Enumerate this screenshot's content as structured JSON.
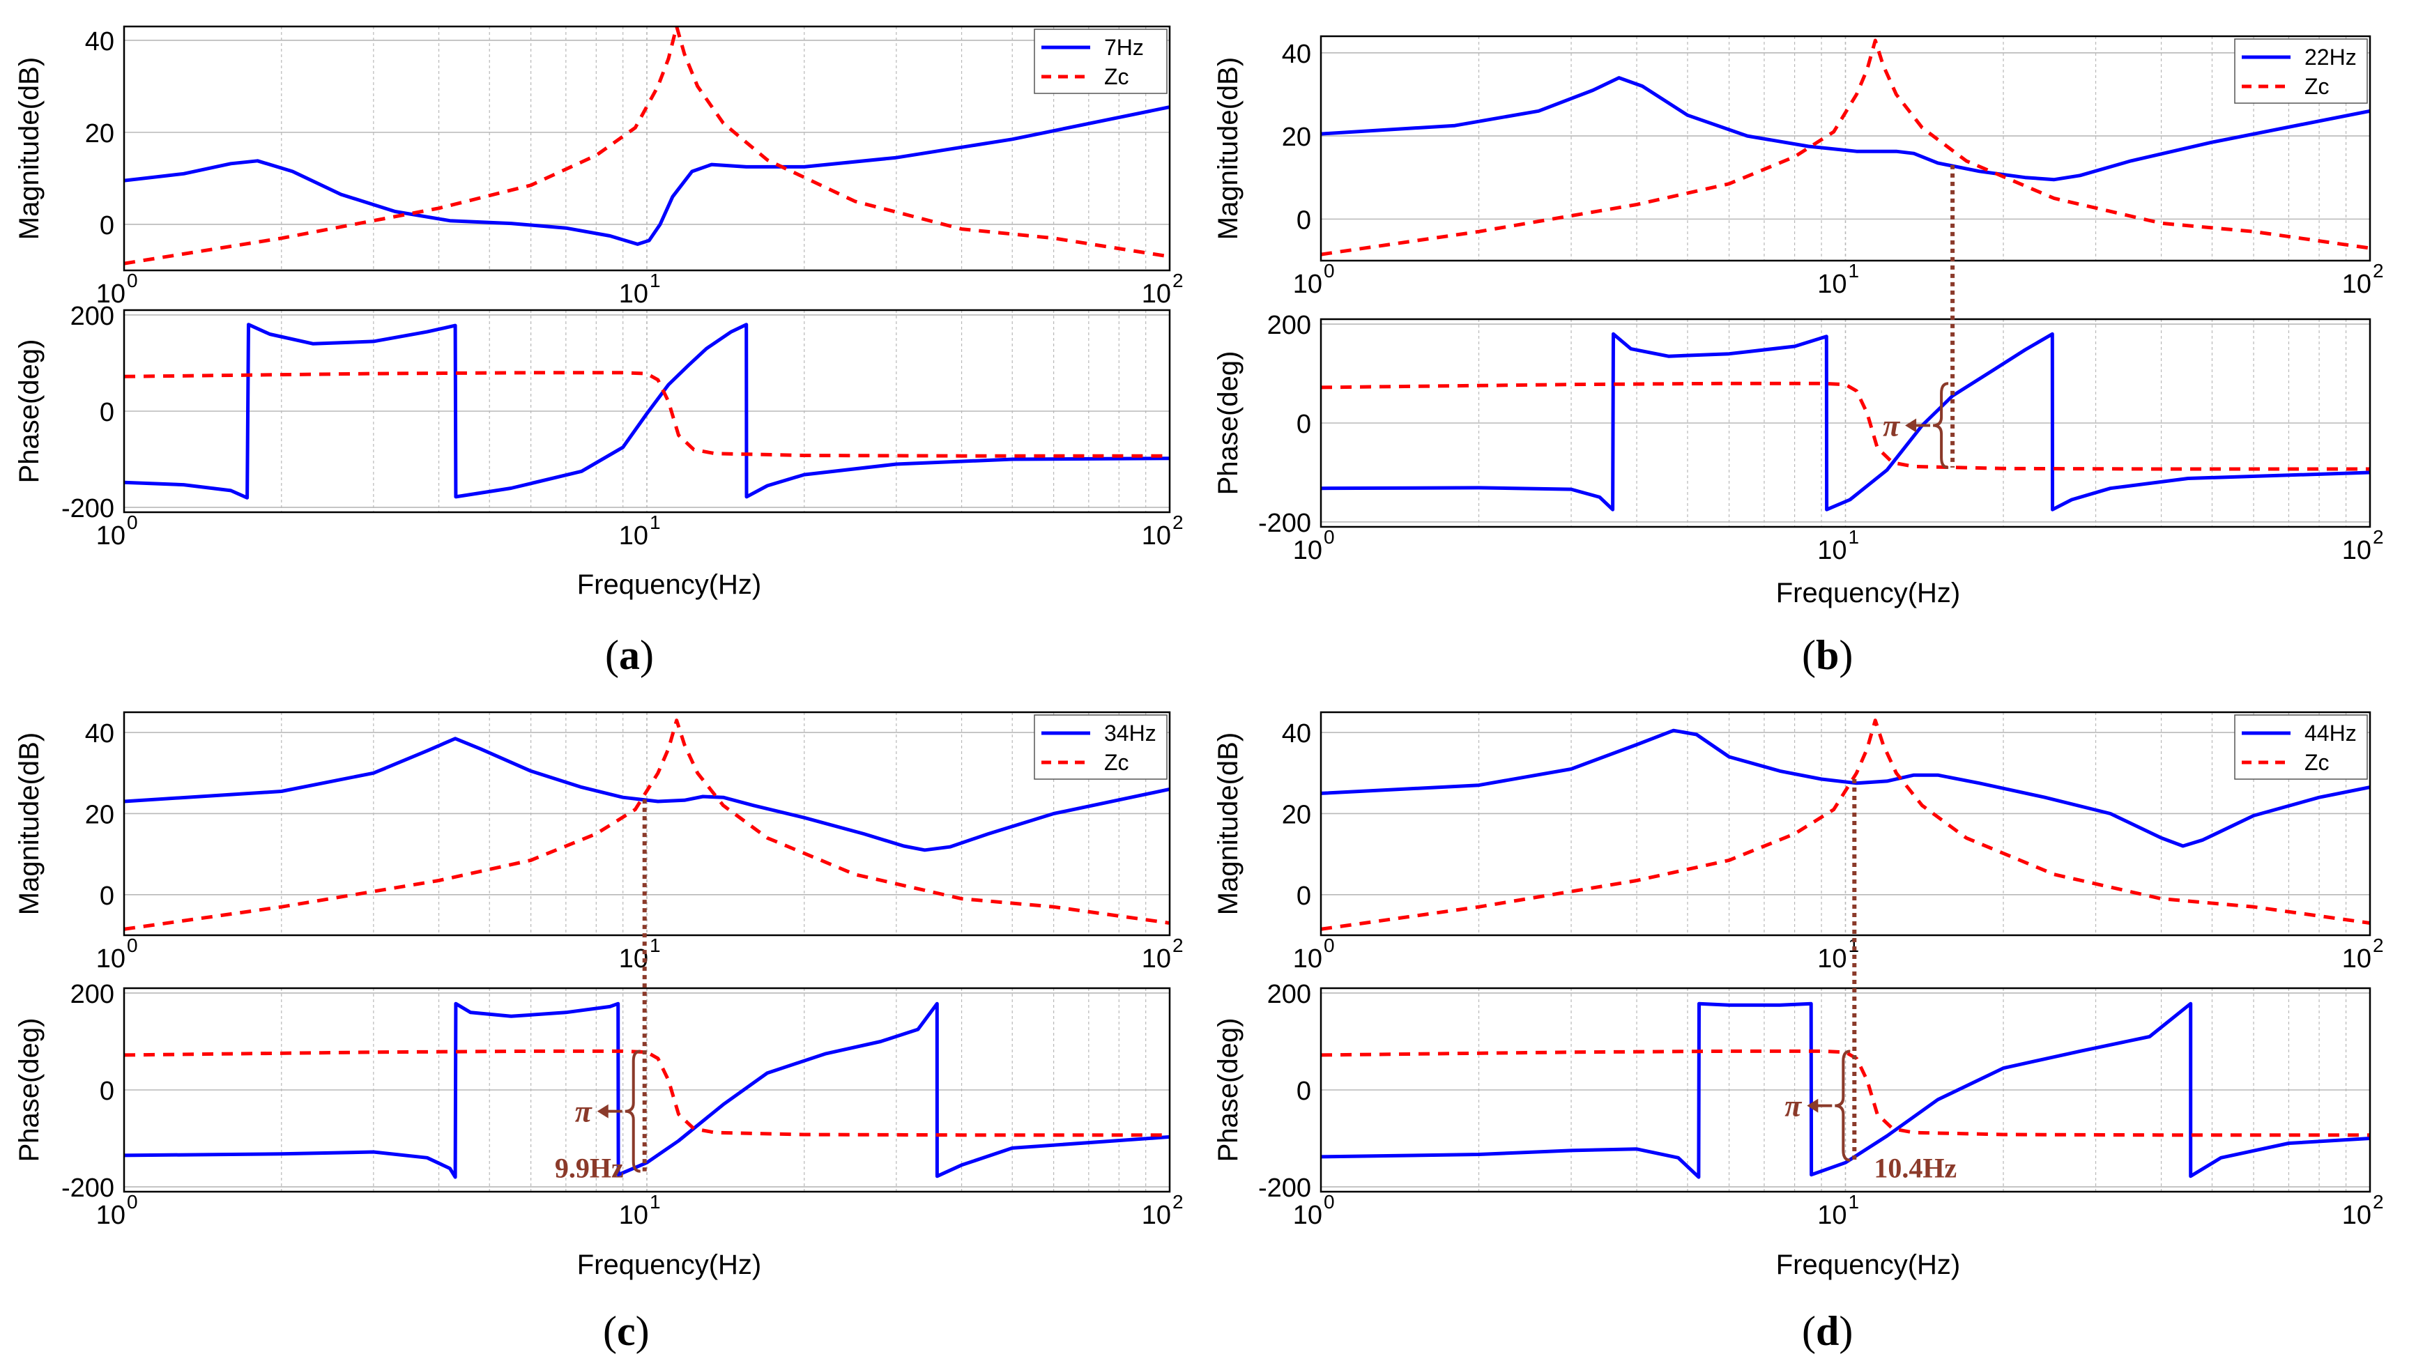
{
  "colors": {
    "open_loop": "#0000ff",
    "zc": "#ff0000",
    "annotation": "#8b3a2a",
    "grid": "#b8b8b8",
    "axis": "#000000"
  },
  "chart_data": [
    {
      "id": "a",
      "type": "line",
      "label_prefix": "(",
      "label_letter": "a",
      "label_suffix": ")",
      "xscale": "log",
      "xlim": [
        1,
        100
      ],
      "x_ticks": [
        {
          "base": "10",
          "exp": "0"
        },
        {
          "base": "10",
          "exp": "1"
        },
        {
          "base": "10",
          "exp": "2"
        }
      ],
      "magnitude": {
        "ylabel": "Magnitude(dB)",
        "ylim": [
          -10,
          43
        ],
        "yticks": [
          "40",
          "20",
          "0"
        ],
        "ytick_values": [
          40,
          20,
          0
        ],
        "series": [
          {
            "name": "7Hz",
            "style": "solid",
            "x": [
              1,
              1.3,
              1.6,
              1.8,
              2.1,
              2.6,
              3.3,
              4.2,
              5.5,
              7,
              8.5,
              9.6,
              10.1,
              10.6,
              11.2,
              12.2,
              13.3,
              15.5,
              20,
              30,
              50,
              100
            ],
            "y": [
              9.5,
              11,
              13.2,
              13.8,
              11.5,
              6.5,
              2.8,
              0.8,
              0.2,
              -0.8,
              -2.5,
              -4.3,
              -3.5,
              0,
              6,
              11.5,
              13,
              12.5,
              12.5,
              14.5,
              18.5,
              25.5
            ]
          },
          {
            "name": "Zc",
            "style": "dashed",
            "x": [
              1,
              2,
              4,
              6,
              8,
              9.5,
              10.5,
              11,
              11.4,
              11.8,
              12.5,
              14,
              17,
              25,
              40,
              60,
              100
            ],
            "y": [
              -8.5,
              -3,
              3.5,
              8.5,
              15,
              21,
              30,
              36,
              43,
              37,
              30,
              22,
              14,
              5,
              -1,
              -3,
              -7
            ]
          }
        ]
      },
      "phase": {
        "ylabel": "Phase(deg)",
        "ylim": [
          -210,
          210
        ],
        "yticks": [
          "200",
          "0",
          "-200"
        ],
        "ytick_values": [
          200,
          0,
          -200
        ],
        "series": [
          {
            "name": "7Hz",
            "style": "solid",
            "x": [
              1,
              1.3,
              1.6,
              1.72,
              1.73,
              1.9,
              2.3,
              3,
              3.8,
              4.3,
              4.31,
              5.5,
              7.5,
              9,
              10,
              11,
              12,
              13,
              14.5,
              15.5,
              15.51,
              17,
              20,
              30,
              50,
              100
            ],
            "y": [
              -148,
              -153,
              -165,
              -180,
              180,
              160,
              140,
              145,
              165,
              178,
              -178,
              -160,
              -125,
              -75,
              -5,
              55,
              95,
              130,
              165,
              180,
              -178,
              -155,
              -132,
              -110,
              -100,
              -98
            ]
          },
          {
            "name": "Zc",
            "style": "dashed",
            "x": [
              1,
              3,
              6,
              9,
              10,
              10.5,
              11,
              11.5,
              12.3,
              13.5,
              20,
              40,
              100
            ],
            "y": [
              72,
              78,
              80,
              80,
              78,
              65,
              20,
              -50,
              -80,
              -88,
              -92,
              -93,
              -93
            ]
          }
        ]
      },
      "xlabel": "Frequency(Hz)",
      "legend_position": "top-right",
      "annotations": []
    },
    {
      "id": "b",
      "type": "line",
      "label_prefix": "(",
      "label_letter": "b",
      "label_suffix": ")",
      "xscale": "log",
      "xlim": [
        1,
        100
      ],
      "x_ticks": [
        {
          "base": "10",
          "exp": "0"
        },
        {
          "base": "10",
          "exp": "1"
        },
        {
          "base": "10",
          "exp": "2"
        }
      ],
      "magnitude": {
        "ylabel": "Magnitude(dB)",
        "ylim": [
          -10,
          44
        ],
        "yticks": [
          "40",
          "20",
          "0"
        ],
        "ytick_values": [
          40,
          20,
          0
        ],
        "series": [
          {
            "name": "22Hz",
            "style": "solid",
            "x": [
              1,
              1.8,
              2.6,
              3.3,
              3.7,
              4.1,
              5,
              6.5,
              8.5,
              10.5,
              12.5,
              13.5,
              15,
              18,
              22,
              25,
              28,
              35,
              50,
              100
            ],
            "y": [
              20.5,
              22.5,
              26,
              31,
              34,
              32,
              25,
              20,
              17.5,
              16.3,
              16.3,
              15.8,
              13.5,
              11.5,
              10,
              9.5,
              10.5,
              14,
              18.5,
              26
            ]
          },
          {
            "name": "Zc",
            "style": "dashed",
            "x": [
              1,
              2,
              4,
              6,
              8,
              9.5,
              10.5,
              11,
              11.4,
              11.8,
              12.5,
              14,
              17,
              25,
              40,
              60,
              100
            ],
            "y": [
              -8.5,
              -3,
              3.5,
              8.5,
              15,
              21,
              30,
              36,
              43,
              37,
              30,
              22,
              14,
              5,
              -1,
              -3,
              -7
            ]
          }
        ]
      },
      "phase": {
        "ylabel": "Phase(deg)",
        "ylim": [
          -210,
          210
        ],
        "yticks": [
          "200",
          "0",
          "-200"
        ],
        "ytick_values": [
          200,
          0,
          -200
        ],
        "series": [
          {
            "name": "22Hz",
            "style": "solid",
            "x": [
              1,
              2,
              3,
              3.4,
              3.6,
              3.61,
              3.9,
              4.6,
              6,
              8,
              9.2,
              9.21,
              10.2,
              12,
              14,
              16,
              19,
              22,
              24.8,
              24.81,
              27,
              32,
              45,
              100
            ],
            "y": [
              -132,
              -131,
              -134,
              -150,
              -175,
              180,
              150,
              135,
              140,
              155,
              175,
              -175,
              -155,
              -95,
              -5,
              55,
              105,
              148,
              180,
              -175,
              -155,
              -132,
              -112,
              -100
            ]
          },
          {
            "name": "Zc",
            "style": "dashed",
            "x": [
              1,
              3,
              6,
              9,
              10,
              10.5,
              11,
              11.5,
              12.3,
              13.5,
              20,
              40,
              100
            ],
            "y": [
              72,
              78,
              80,
              80,
              78,
              65,
              20,
              -50,
              -80,
              -88,
              -92,
              -93,
              -93
            ]
          }
        ]
      },
      "xlabel": "Frequency(Hz)",
      "legend_position": "top-right",
      "annotations": [
        {
          "kind": "crossing",
          "x": 16,
          "mag_y": 13,
          "phase_top": 80,
          "phase_bottom": -90,
          "text": "π",
          "text_side": "left"
        }
      ]
    },
    {
      "id": "c",
      "type": "line",
      "label_prefix": "(",
      "label_letter": "c",
      "label_suffix": ")",
      "xscale": "log",
      "xlim": [
        1,
        100
      ],
      "x_ticks": [
        {
          "base": "10",
          "exp": "0"
        },
        {
          "base": "10",
          "exp": "1"
        },
        {
          "base": "10",
          "exp": "2"
        }
      ],
      "magnitude": {
        "ylabel": "Magnitude(dB)",
        "ylim": [
          -10,
          45
        ],
        "yticks": [
          "40",
          "20",
          "0"
        ],
        "ytick_values": [
          40,
          20,
          0
        ],
        "series": [
          {
            "name": "34Hz",
            "style": "solid",
            "x": [
              1,
              2,
              3,
              3.8,
              4.3,
              4.8,
              6,
              7.5,
              9,
              10.5,
              11.8,
              12.8,
              14,
              16,
              20,
              26,
              31,
              34,
              38,
              45,
              60,
              100
            ],
            "y": [
              23,
              25.5,
              30,
              35.5,
              38.5,
              36,
              30.5,
              26.5,
              24,
              23,
              23.3,
              24.2,
              24,
              22,
              19,
              15,
              12,
              11,
              11.8,
              15,
              20,
              26
            ]
          },
          {
            "name": "Zc",
            "style": "dashed",
            "x": [
              1,
              2,
              4,
              6,
              8,
              9.5,
              10.5,
              11,
              11.4,
              11.8,
              12.5,
              14,
              17,
              25,
              40,
              60,
              100
            ],
            "y": [
              -8.5,
              -3,
              3.5,
              8.5,
              15,
              21,
              30,
              36,
              43,
              37,
              30,
              22,
              14,
              5,
              -1,
              -3,
              -7
            ]
          }
        ]
      },
      "phase": {
        "ylabel": "Phase(deg)",
        "ylim": [
          -210,
          210
        ],
        "yticks": [
          "200",
          "0",
          "-200"
        ],
        "ytick_values": [
          200,
          0,
          -200
        ],
        "series": [
          {
            "name": "34Hz",
            "style": "solid",
            "x": [
              1,
              2,
              3,
              3.8,
              4.2,
              4.3,
              4.31,
              4.6,
              5.5,
              7,
              8.5,
              8.81,
              8.82,
              10,
              11.5,
              14,
              17,
              22,
              28,
              33,
              35.9,
              35.91,
              40,
              50,
              100
            ],
            "y": [
              -135,
              -132,
              -128,
              -140,
              -162,
              -180,
              178,
              160,
              152,
              160,
              172,
              178,
              -175,
              -150,
              -105,
              -30,
              35,
              75,
              100,
              125,
              178,
              -178,
              -155,
              -120,
              -97
            ]
          },
          {
            "name": "Zc",
            "style": "dashed",
            "x": [
              1,
              3,
              6,
              9,
              10,
              10.5,
              11,
              11.5,
              12.3,
              13.5,
              20,
              40,
              100
            ],
            "y": [
              72,
              78,
              80,
              80,
              78,
              65,
              20,
              -50,
              -80,
              -88,
              -92,
              -93,
              -93
            ]
          }
        ]
      },
      "xlabel": "Frequency(Hz)",
      "legend_position": "top-right",
      "annotations": [
        {
          "kind": "crossing",
          "x": 9.9,
          "mag_y": 23.5,
          "phase_top": 80,
          "phase_bottom": -168,
          "text": "π",
          "text_side": "left",
          "freq_label": "9.9Hz",
          "freq_side": "left"
        }
      ]
    },
    {
      "id": "d",
      "type": "line",
      "label_prefix": "(",
      "label_letter": "d",
      "label_suffix": ")",
      "xscale": "log",
      "xlim": [
        1,
        100
      ],
      "x_ticks": [
        {
          "base": "10",
          "exp": "0"
        },
        {
          "base": "10",
          "exp": "1"
        },
        {
          "base": "10",
          "exp": "2"
        }
      ],
      "magnitude": {
        "ylabel": "Magnitude(dB)",
        "ylim": [
          -10,
          45
        ],
        "yticks": [
          "40",
          "20",
          "0"
        ],
        "ytick_values": [
          40,
          20,
          0
        ],
        "series": [
          {
            "name": "44Hz",
            "style": "solid",
            "x": [
              1,
              2,
              3,
              4,
              4.7,
              5.2,
              6,
              7.5,
              9,
              10.5,
              12,
              13.5,
              15,
              18,
              24,
              32,
              40,
              44,
              48,
              60,
              80,
              100
            ],
            "y": [
              25,
              27,
              31,
              37,
              40.5,
              39.5,
              34,
              30.5,
              28.5,
              27.5,
              28,
              29.5,
              29.5,
              27.5,
              24,
              20,
              14,
              12,
              13.5,
              19.5,
              24,
              26.5
            ]
          },
          {
            "name": "Zc",
            "style": "dashed",
            "x": [
              1,
              2,
              4,
              6,
              8,
              9.5,
              10.5,
              11,
              11.4,
              11.8,
              12.5,
              14,
              17,
              25,
              40,
              60,
              100
            ],
            "y": [
              -8.5,
              -3,
              3.5,
              8.5,
              15,
              21,
              30,
              36,
              43,
              37,
              30,
              22,
              14,
              5,
              -1,
              -3,
              -7
            ]
          }
        ]
      },
      "phase": {
        "ylabel": "Phase(deg)",
        "ylim": [
          -210,
          210
        ],
        "yticks": [
          "200",
          "0",
          "-200"
        ],
        "ytick_values": [
          200,
          0,
          -200
        ],
        "series": [
          {
            "name": "44Hz",
            "style": "solid",
            "x": [
              1,
              2,
              3,
              4,
              4.8,
              5.25,
              5.26,
              6,
              7.5,
              8.6,
              8.61,
              10,
              12,
              15,
              20,
              28,
              38,
              45.5,
              45.51,
              52,
              70,
              100
            ],
            "y": [
              -138,
              -133,
              -125,
              -122,
              -140,
              -180,
              178,
              175,
              175,
              178,
              -175,
              -150,
              -95,
              -20,
              45,
              80,
              110,
              178,
              -178,
              -140,
              -110,
              -100
            ]
          },
          {
            "name": "Zc",
            "style": "dashed",
            "x": [
              1,
              3,
              6,
              9,
              10,
              10.5,
              11,
              11.5,
              12.3,
              13.5,
              20,
              40,
              100
            ],
            "y": [
              72,
              78,
              80,
              80,
              78,
              65,
              20,
              -50,
              -80,
              -88,
              -92,
              -93,
              -93
            ]
          }
        ]
      },
      "xlabel": "Frequency(Hz)",
      "legend_position": "top-right",
      "annotations": [
        {
          "kind": "crossing",
          "x": 10.4,
          "mag_y": 28.5,
          "phase_top": 80,
          "phase_bottom": -145,
          "text": "π",
          "text_side": "left",
          "freq_label": "10.4Hz",
          "freq_side": "right"
        }
      ]
    }
  ]
}
